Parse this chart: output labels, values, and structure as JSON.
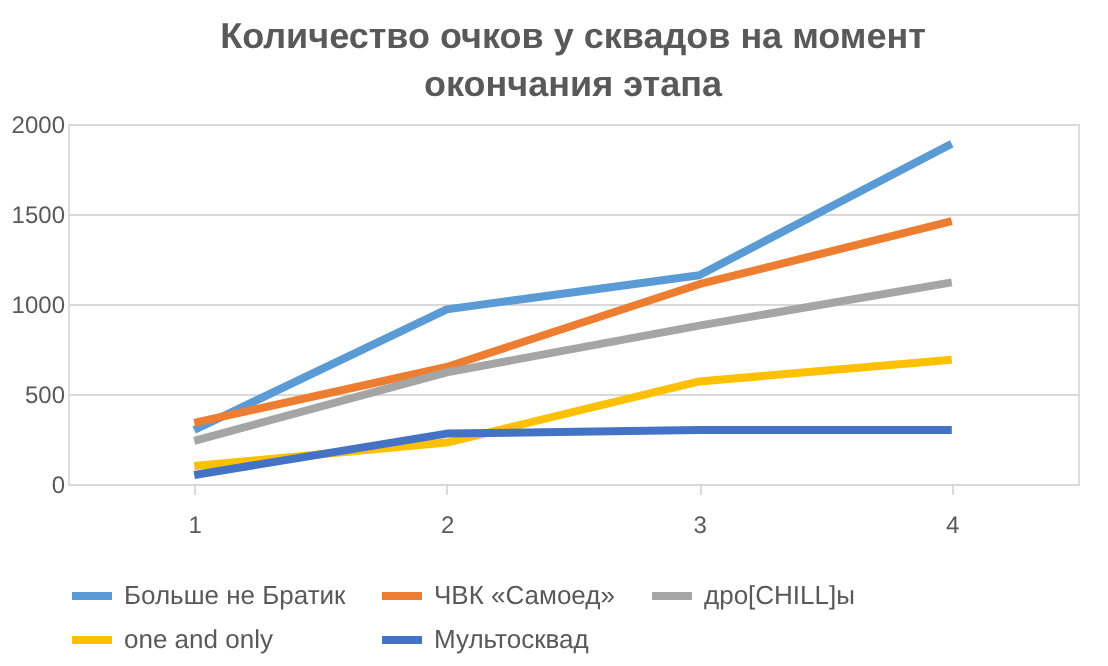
{
  "chart_data": {
    "type": "line",
    "title": "Количество очков у сквадов на момент окончания этапа",
    "categories": [
      "1",
      "2",
      "3",
      "4"
    ],
    "series": [
      {
        "name": "Больше не Братик",
        "color": "#5b9bd5",
        "values": [
          300,
          970,
          1160,
          1890
        ]
      },
      {
        "name": "ЧВК «Самоед»",
        "color": "#ed7d31",
        "values": [
          340,
          650,
          1110,
          1460
        ]
      },
      {
        "name": "дро[CHILL]ы",
        "color": "#a5a5a5",
        "values": [
          240,
          620,
          880,
          1120
        ]
      },
      {
        "name": "one and only",
        "color": "#ffc000",
        "values": [
          100,
          230,
          570,
          690
        ]
      },
      {
        "name": "Мультосквад",
        "color": "#4472c4",
        "values": [
          50,
          280,
          300,
          300
        ]
      }
    ],
    "ylim": [
      0,
      2000
    ],
    "yticks": [
      0,
      500,
      1000,
      1500,
      2000
    ],
    "grid": "y",
    "legend": "bottom",
    "marker": "none",
    "line_style": "solid"
  }
}
